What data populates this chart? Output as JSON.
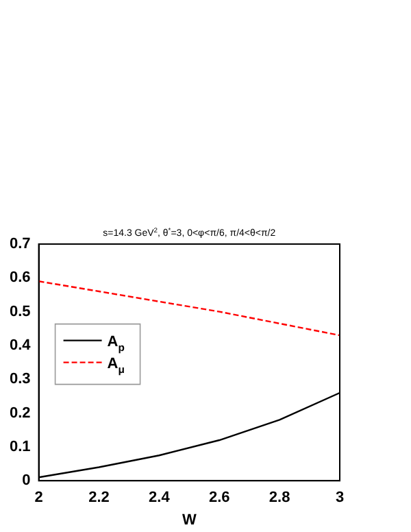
{
  "chart_data": {
    "type": "line",
    "title": "s=14.3 GeV$^{2}$, θ$^{*}$=3, 0<φ<π/6, π/4<θ<π/2",
    "xlabel": "W",
    "x": [
      2,
      2.2,
      2.4,
      2.6,
      2.8,
      3
    ],
    "series": [
      {
        "name": "A$_{p}$",
        "color": "#000000",
        "line_style": "solid",
        "values": [
          0.01,
          0.04,
          0.075,
          0.12,
          0.18,
          0.26
        ]
      },
      {
        "name": "A$_{μ}$",
        "color": "#ff0000",
        "line_style": "dashed",
        "values": [
          0.59,
          0.56,
          0.53,
          0.5,
          0.465,
          0.43
        ]
      }
    ],
    "xlim": [
      2,
      3
    ],
    "xticks": [
      2,
      2.2,
      2.4,
      2.6,
      2.8,
      3
    ],
    "ylim": [
      0,
      0.7
    ],
    "yticks": [
      0,
      0.1,
      0.2,
      0.3,
      0.4,
      0.5,
      0.6,
      0.7
    ],
    "grid": false,
    "legend": "left",
    "marker": "none"
  }
}
